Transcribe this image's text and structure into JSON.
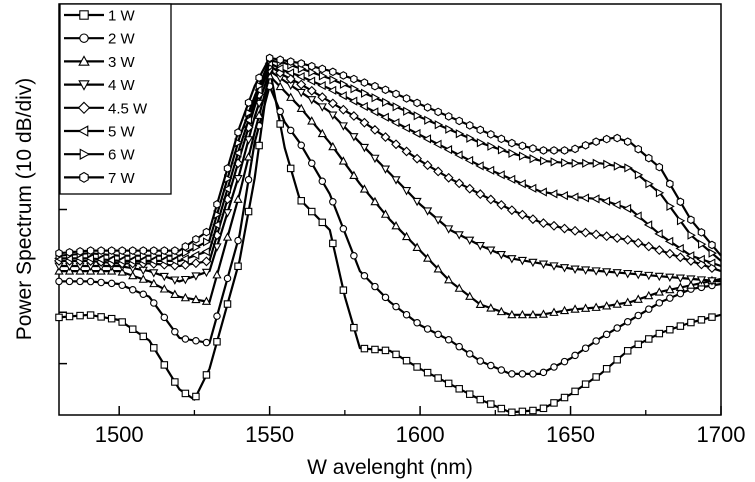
{
  "chart_data": {
    "type": "line",
    "xlabel": "W avelenght (nm)",
    "ylabel": "Power Spectrum (10 dB/div)",
    "xlim": [
      1480,
      1700
    ],
    "ylim": [
      0,
      8
    ],
    "xticks": [
      1500,
      1550,
      1600,
      1650,
      1700
    ],
    "xticklabels": [
      "1500",
      "1550",
      "1600",
      "1650",
      "1700"
    ],
    "yticks_count": 8,
    "grid": "none",
    "legend_position": "top-left",
    "series": [
      {
        "name": "1 W",
        "marker": "square",
        "x": [
          1480,
          1490,
          1500,
          1510,
          1520,
          1525,
          1530,
          1540,
          1545,
          1550,
          1555,
          1560,
          1570,
          1575,
          1580,
          1590,
          1600,
          1610,
          1620,
          1630,
          1640,
          1650,
          1660,
          1670,
          1680,
          1690,
          1700
        ],
        "y": [
          1.9,
          1.95,
          1.85,
          1.45,
          0.5,
          0.3,
          0.9,
          3.0,
          4.6,
          6.75,
          5.2,
          4.2,
          3.6,
          2.3,
          1.3,
          1.25,
          0.9,
          0.6,
          0.3,
          0.05,
          0.1,
          0.4,
          0.8,
          1.3,
          1.6,
          1.8,
          1.95
        ]
      },
      {
        "name": "2 W",
        "marker": "circle",
        "x": [
          1480,
          1490,
          1500,
          1510,
          1520,
          1530,
          1540,
          1545,
          1550,
          1555,
          1560,
          1570,
          1580,
          1590,
          1600,
          1610,
          1620,
          1630,
          1640,
          1650,
          1660,
          1670,
          1680,
          1690,
          1700
        ],
        "y": [
          2.6,
          2.6,
          2.55,
          2.3,
          1.5,
          1.4,
          3.5,
          5.3,
          6.4,
          5.7,
          5.3,
          4.3,
          2.8,
          2.2,
          1.75,
          1.45,
          1.05,
          0.8,
          0.8,
          1.1,
          1.5,
          1.85,
          2.2,
          2.45,
          2.55
        ]
      },
      {
        "name": "3 W",
        "marker": "triangle-up",
        "x": [
          1480,
          1490,
          1500,
          1510,
          1520,
          1530,
          1540,
          1545,
          1550,
          1555,
          1560,
          1570,
          1580,
          1590,
          1600,
          1610,
          1620,
          1630,
          1640,
          1650,
          1660,
          1670,
          1680,
          1700
        ],
        "y": [
          2.8,
          2.8,
          2.8,
          2.6,
          2.3,
          2.2,
          4.3,
          5.5,
          6.6,
          6.3,
          6.0,
          5.3,
          4.5,
          3.8,
          3.2,
          2.6,
          2.15,
          1.95,
          1.95,
          2.05,
          2.1,
          2.2,
          2.4,
          2.65
        ]
      },
      {
        "name": "4 W",
        "marker": "triangle-down",
        "x": [
          1480,
          1490,
          1500,
          1510,
          1520,
          1530,
          1540,
          1545,
          1550,
          1555,
          1560,
          1570,
          1580,
          1590,
          1600,
          1610,
          1620,
          1630,
          1640,
          1650,
          1660,
          1670,
          1680,
          1690,
          1700
        ],
        "y": [
          2.9,
          2.9,
          2.9,
          2.8,
          2.6,
          2.8,
          4.7,
          5.8,
          6.7,
          6.5,
          6.3,
          5.9,
          5.3,
          4.7,
          4.1,
          3.6,
          3.3,
          3.05,
          2.95,
          2.85,
          2.8,
          2.75,
          2.7,
          2.65,
          2.6
        ]
      },
      {
        "name": "4.5 W",
        "marker": "diamond",
        "x": [
          1480,
          1490,
          1500,
          1510,
          1520,
          1530,
          1540,
          1545,
          1550,
          1555,
          1560,
          1570,
          1580,
          1590,
          1600,
          1610,
          1620,
          1630,
          1640,
          1650,
          1660,
          1670,
          1680,
          1690,
          1700
        ],
        "y": [
          3.0,
          3.0,
          2.95,
          2.95,
          2.9,
          3.0,
          5.0,
          6.0,
          6.8,
          6.6,
          6.45,
          6.1,
          5.75,
          5.35,
          4.95,
          4.6,
          4.3,
          4.0,
          3.75,
          3.6,
          3.5,
          3.4,
          3.2,
          3.0,
          2.8
        ]
      },
      {
        "name": "5 W",
        "marker": "triangle-left",
        "x": [
          1480,
          1490,
          1500,
          1510,
          1520,
          1530,
          1540,
          1545,
          1550,
          1555,
          1560,
          1570,
          1580,
          1590,
          1600,
          1610,
          1620,
          1630,
          1640,
          1650,
          1660,
          1670,
          1680,
          1690,
          1700
        ],
        "y": [
          3.05,
          3.05,
          3.0,
          3.0,
          3.0,
          3.2,
          5.2,
          6.1,
          6.85,
          6.7,
          6.6,
          6.35,
          6.05,
          5.75,
          5.45,
          5.15,
          4.85,
          4.6,
          4.35,
          4.25,
          4.2,
          4.0,
          3.5,
          3.1,
          2.9
        ]
      },
      {
        "name": "6 W",
        "marker": "triangle-right",
        "x": [
          1480,
          1490,
          1500,
          1510,
          1520,
          1530,
          1540,
          1545,
          1550,
          1555,
          1560,
          1570,
          1580,
          1590,
          1600,
          1610,
          1620,
          1630,
          1640,
          1650,
          1660,
          1670,
          1680,
          1690,
          1700
        ],
        "y": [
          3.1,
          3.15,
          3.1,
          3.1,
          3.1,
          3.4,
          5.4,
          6.2,
          6.9,
          6.85,
          6.75,
          6.55,
          6.3,
          6.05,
          5.8,
          5.55,
          5.3,
          5.1,
          4.95,
          4.9,
          4.9,
          4.8,
          4.3,
          3.5,
          3.0
        ]
      },
      {
        "name": "7 W",
        "marker": "hexagon",
        "x": [
          1480,
          1490,
          1500,
          1510,
          1520,
          1530,
          1540,
          1545,
          1550,
          1555,
          1560,
          1570,
          1580,
          1590,
          1600,
          1610,
          1620,
          1630,
          1640,
          1650,
          1660,
          1665,
          1670,
          1680,
          1690,
          1700
        ],
        "y": [
          3.15,
          3.2,
          3.2,
          3.2,
          3.2,
          3.6,
          5.6,
          6.4,
          6.95,
          6.9,
          6.85,
          6.7,
          6.5,
          6.3,
          6.05,
          5.8,
          5.55,
          5.3,
          5.15,
          5.15,
          5.35,
          5.4,
          5.3,
          4.8,
          3.8,
          3.1
        ]
      }
    ]
  }
}
